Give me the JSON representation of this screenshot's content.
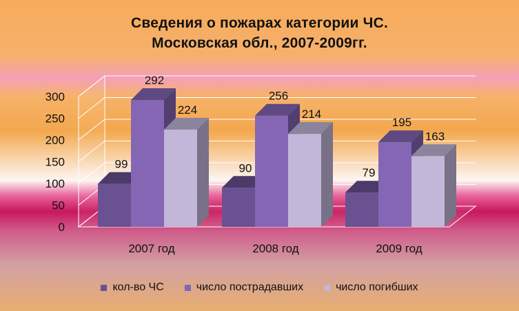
{
  "chart_data": {
    "type": "bar",
    "title": [
      "Сведения о пожарах  категории ЧС.",
      "Московская обл., 2007-2009гг."
    ],
    "categories": [
      "2007 год",
      "2008 год",
      "2009 год"
    ],
    "series": [
      {
        "name": "кол-во ЧС",
        "values": [
          99,
          90,
          79
        ],
        "color": "#6A5191"
      },
      {
        "name": "число пострадавших",
        "values": [
          292,
          256,
          195
        ],
        "color": "#8466B5"
      },
      {
        "name": "число погибших",
        "values": [
          224,
          214,
          163
        ],
        "color": "#C2B6D9"
      }
    ],
    "yticks": [
      0,
      50,
      100,
      150,
      200,
      250,
      300
    ],
    "ylim": [
      0,
      300
    ],
    "grid": true,
    "legend": "bottom",
    "three_d": true
  }
}
